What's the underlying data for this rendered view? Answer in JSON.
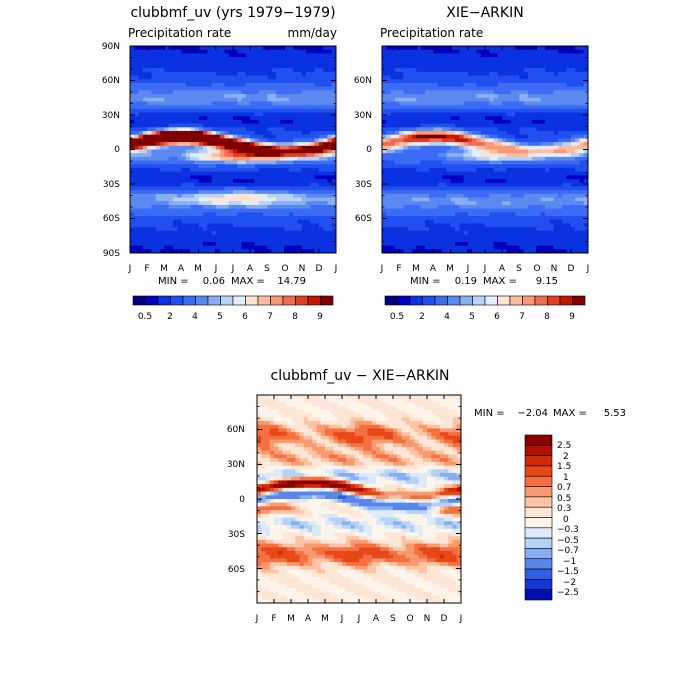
{
  "chart_data": [
    {
      "type": "heatmap",
      "title": "clubbmf_uv (yrs 1979−1979)",
      "subtitle_left": "Precipitation rate",
      "subtitle_right": "mm/day",
      "stats": {
        "min_label": "MIN =",
        "min": "0.06",
        "max_label": "MAX =",
        "max": "14.79"
      },
      "x_ticks": [
        "J",
        "F",
        "M",
        "A",
        "M",
        "J",
        "J",
        "A",
        "S",
        "O",
        "N",
        "D",
        "J"
      ],
      "y_ticks": [
        "90N",
        "60N",
        "30N",
        "0",
        "30S",
        "60S",
        "90S"
      ],
      "colorbar": {
        "tick_labels": [
          "0.5",
          "2",
          "4",
          "5",
          "6",
          "7",
          "8",
          "9"
        ],
        "colors": [
          "#000080",
          "#0000c0",
          "#0a32e0",
          "#2050f0",
          "#3c6cf5",
          "#5a8af0",
          "#8aaef0",
          "#b8d2f8",
          "#e2eefc",
          "#ffe2d2",
          "#fdbca0",
          "#f89878",
          "#f06e50",
          "#e04020",
          "#c01800",
          "#800000"
        ]
      }
    },
    {
      "type": "heatmap",
      "title": "XIE−ARKIN",
      "subtitle_left": "Precipitation rate",
      "stats": {
        "min_label": "MIN =",
        "min": "0.19",
        "max_label": "MAX =",
        "max": "9.15"
      },
      "x_ticks": [
        "J",
        "F",
        "M",
        "A",
        "M",
        "J",
        "J",
        "A",
        "S",
        "O",
        "N",
        "D",
        "J"
      ],
      "y_ticks": [
        "60N",
        "30N",
        "0",
        "30S",
        "60S"
      ],
      "colorbar": {
        "tick_labels": [
          "0.5",
          "2",
          "4",
          "5",
          "6",
          "7",
          "8",
          "9"
        ],
        "colors": [
          "#000080",
          "#0000c0",
          "#0a32e0",
          "#2050f0",
          "#3c6cf5",
          "#5a8af0",
          "#8aaef0",
          "#b8d2f8",
          "#e2eefc",
          "#ffe2d2",
          "#fdbca0",
          "#f89878",
          "#f06e50",
          "#e04020",
          "#c01800",
          "#800000"
        ]
      }
    },
    {
      "type": "heatmap",
      "title": "clubbmf_uv − XIE−ARKIN",
      "stats": {
        "min_label": "MIN =",
        "min": "−2.04",
        "max_label": "MAX =",
        "max": "5.53"
      },
      "x_ticks": [
        "J",
        "F",
        "M",
        "A",
        "M",
        "J",
        "J",
        "A",
        "S",
        "O",
        "N",
        "D",
        "J"
      ],
      "y_ticks": [
        "60N",
        "30N",
        "0",
        "30S",
        "60S"
      ],
      "colorbar": {
        "tick_labels": [
          "2.5",
          "2",
          "1.5",
          "1",
          "0.7",
          "0.5",
          "0.3",
          "0",
          "−0.3",
          "−0.5",
          "−0.7",
          "−1",
          "−1.5",
          "−2",
          "−2.5"
        ],
        "colors": [
          "#8a0000",
          "#b01000",
          "#d02a08",
          "#e84818",
          "#f47040",
          "#f89a70",
          "#fcc4a4",
          "#fee6d6",
          "#fdf4ec",
          "#dceaf8",
          "#b6d2f6",
          "#88aef2",
          "#5a86ec",
          "#3060e4",
          "#1438d8",
          "#0010b0"
        ]
      }
    }
  ]
}
